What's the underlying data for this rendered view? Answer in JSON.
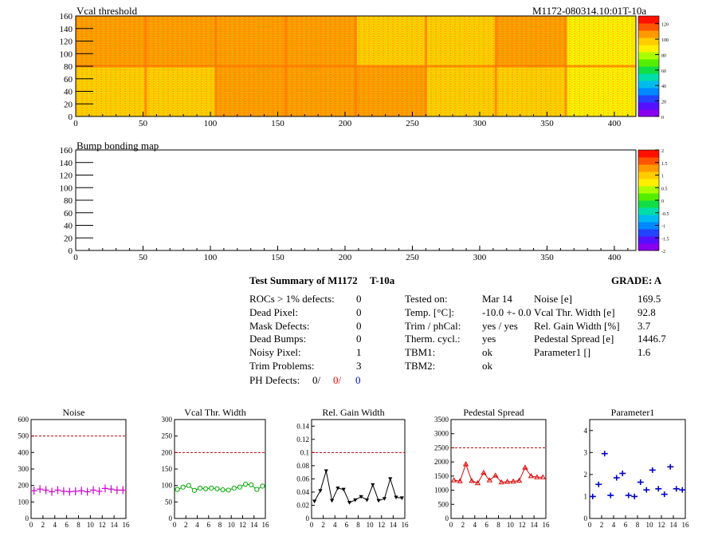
{
  "header": {
    "title": "Vcal threshold",
    "module_label": "M1172-080314.10:01T-10a"
  },
  "bump_map": {
    "title": "Bump bonding map"
  },
  "summary": {
    "heading": "Test Summary of M1172",
    "tag": "T-10a",
    "grade": "GRADE:  A",
    "left": [
      {
        "label": "ROCs > 1% defects:",
        "value": "0"
      },
      {
        "label": "Dead Pixel:",
        "value": "0"
      },
      {
        "label": "Mask Defects:",
        "value": "0"
      },
      {
        "label": "Dead Bumps:",
        "value": "0"
      },
      {
        "label": "Noisy Pixel:",
        "value": "1"
      },
      {
        "label": "Trim Problems:",
        "value": "3"
      }
    ],
    "ph_defects": {
      "label": "PH Defects:",
      "v1": "0/",
      "v2": "0/",
      "v3": "0"
    },
    "middle": [
      {
        "label": "Tested on:",
        "value": "Mar 14"
      },
      {
        "label": "Temp. [°C]:",
        "value": "-10.0 +- 0.0"
      },
      {
        "label": "Trim / phCal:",
        "value": "yes / yes"
      },
      {
        "label": "Therm. cycl.:",
        "value": "yes"
      },
      {
        "label": "TBM1:",
        "value": "ok"
      },
      {
        "label": "TBM2:",
        "value": "ok"
      }
    ],
    "right": [
      {
        "label": "Noise [e]",
        "value": "169.5"
      },
      {
        "label": "Vcal Thr. Width [e]",
        "value": "92.8"
      },
      {
        "label": "Rel. Gain Width [%]",
        "value": "3.7"
      },
      {
        "label": "Pedestal Spread [e]",
        "value": "1446.7"
      },
      {
        "label": "Parameter1 []",
        "value": "1.6"
      }
    ]
  },
  "colors": {
    "noise": "#cc00cc",
    "vcal": "#00aa00",
    "gain": "#000000",
    "pedestal": "#dd0000",
    "param": "#0000cc",
    "limit": "#cc0000"
  },
  "chart_data": [
    {
      "type": "heatmap",
      "title": "Vcal threshold",
      "xlim": [
        0,
        416
      ],
      "ylim": [
        0,
        160
      ],
      "xticks": [
        "0",
        "50",
        "100",
        "150",
        "200",
        "250",
        "300",
        "350",
        "400"
      ],
      "yticks": [
        "0",
        "20",
        "40",
        "60",
        "80",
        "100",
        "120",
        "140",
        "160"
      ],
      "zlim": [
        0,
        130
      ],
      "zticks": [
        "0",
        "20",
        "40",
        "60",
        "80",
        "100",
        "120"
      ],
      "roc_means": {
        "top": [
          108,
          103,
          110,
          104,
          102,
          99,
          104,
          87
        ],
        "bottom": [
          101,
          97,
          108,
          110,
          103,
          96,
          99,
          90
        ]
      }
    },
    {
      "type": "heatmap",
      "title": "Bump bonding map",
      "xlim": [
        0,
        416
      ],
      "ylim": [
        0,
        160
      ],
      "xticks": [
        "0",
        "50",
        "100",
        "150",
        "200",
        "250",
        "300",
        "350",
        "400"
      ],
      "yticks": [
        "0",
        "20",
        "40",
        "60",
        "80",
        "100",
        "120",
        "140",
        "160"
      ],
      "zlim": [
        -2,
        2
      ],
      "zticks": [
        "-2",
        "-1.5",
        "-1",
        "-0.5",
        "0",
        "0.5",
        "1",
        "1.5",
        "2"
      ]
    },
    {
      "type": "scatter",
      "title": "Noise",
      "x": [
        0,
        1,
        2,
        3,
        4,
        5,
        6,
        7,
        8,
        9,
        10,
        11,
        12,
        13,
        14,
        15
      ],
      "y": [
        168,
        178,
        172,
        162,
        172,
        165,
        162,
        165,
        168,
        162,
        172,
        165,
        182,
        178,
        172,
        172
      ],
      "xlim": [
        0,
        16
      ],
      "ylim": [
        0,
        600
      ],
      "limit": 500,
      "xticks": [
        "0",
        "2",
        "4",
        "6",
        "8",
        "10",
        "12",
        "14",
        "16"
      ],
      "yticks": [
        "0",
        "100",
        "200",
        "300",
        "400",
        "500",
        "600"
      ],
      "marker": "cross"
    },
    {
      "type": "line",
      "title": "Vcal Thr. Width",
      "x": [
        0,
        1,
        2,
        3,
        4,
        5,
        6,
        7,
        8,
        9,
        10,
        11,
        12,
        13,
        14,
        15
      ],
      "y": [
        88,
        95,
        100,
        85,
        92,
        90,
        92,
        90,
        87,
        86,
        92,
        95,
        104,
        102,
        88,
        98
      ],
      "xlim": [
        0,
        16
      ],
      "ylim": [
        0,
        300
      ],
      "limit": 200,
      "xticks": [
        "0",
        "2",
        "4",
        "6",
        "8",
        "10",
        "12",
        "14",
        "16"
      ],
      "yticks": [
        "0",
        "50",
        "100",
        "150",
        "200",
        "250",
        "300"
      ],
      "marker": "circle"
    },
    {
      "type": "line",
      "title": "Rel. Gain Width",
      "x": [
        0,
        1,
        2,
        3,
        4,
        5,
        6,
        7,
        8,
        9,
        10,
        11,
        12,
        13,
        14,
        15
      ],
      "y": [
        0.026,
        0.042,
        0.072,
        0.027,
        0.046,
        0.044,
        0.024,
        0.028,
        0.033,
        0.028,
        0.051,
        0.027,
        0.03,
        0.06,
        0.032,
        0.031
      ],
      "xlim": [
        0,
        16
      ],
      "ylim": [
        0,
        0.15
      ],
      "limit": 0.1,
      "xticks": [
        "0",
        "2",
        "4",
        "6",
        "8",
        "10",
        "12",
        "14",
        "16"
      ],
      "yticks": [
        "0",
        "0.02",
        "0.04",
        "0.06",
        "0.08",
        "0.1",
        "0.12",
        "0.14"
      ],
      "marker": "triangle"
    },
    {
      "type": "line",
      "title": "Pedestal Spread",
      "x": [
        0,
        1,
        2,
        3,
        4,
        5,
        6,
        7,
        8,
        9,
        10,
        11,
        12,
        13,
        14,
        15
      ],
      "y": [
        1350,
        1320,
        1920,
        1330,
        1250,
        1620,
        1350,
        1520,
        1280,
        1300,
        1310,
        1340,
        1800,
        1500,
        1460,
        1460
      ],
      "xlim": [
        0,
        16
      ],
      "ylim": [
        0,
        3500
      ],
      "limit": 2500,
      "xticks": [
        "0",
        "2",
        "4",
        "6",
        "8",
        "10",
        "12",
        "14",
        "16"
      ],
      "yticks": [
        "0",
        "500",
        "1000",
        "1500",
        "2000",
        "2500",
        "3000",
        "3500"
      ],
      "marker": "triangle-open"
    },
    {
      "type": "scatter",
      "title": "Parameter1",
      "x": [
        0,
        1,
        2,
        3,
        4,
        5,
        6,
        7,
        8,
        9,
        10,
        11,
        12,
        13,
        14,
        15
      ],
      "y": [
        1.0,
        1.55,
        2.95,
        1.05,
        1.85,
        2.05,
        1.05,
        1.0,
        1.65,
        1.3,
        2.2,
        1.35,
        1.1,
        2.35,
        1.35,
        1.3
      ],
      "xlim": [
        0,
        16
      ],
      "ylim": [
        0,
        4.5
      ],
      "xticks": [
        "0",
        "2",
        "4",
        "6",
        "8",
        "10",
        "12",
        "14",
        "16"
      ],
      "yticks": [
        "0",
        "1",
        "2",
        "3",
        "4"
      ],
      "marker": "cross"
    }
  ]
}
